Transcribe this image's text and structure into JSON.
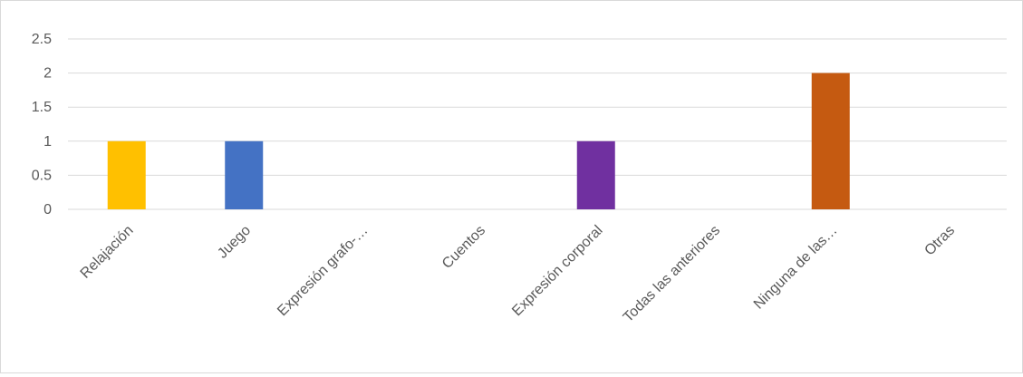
{
  "chart_data": {
    "type": "bar",
    "categories": [
      "Relajación",
      "Juego",
      "Expresión grafo-…",
      "Cuentos",
      "Expresión corporal",
      "Todas las anteriores",
      "Ninguna de las…",
      "Otras"
    ],
    "values": [
      1,
      1,
      0,
      0,
      1,
      0,
      2,
      0
    ],
    "bar_colors": [
      "#FFC000",
      "#4472C4",
      "#A5A5A5",
      "#5B9BD5",
      "#7030A0",
      "#70AD47",
      "#C55A11",
      "#264478"
    ],
    "yticks": [
      "0",
      "0.5",
      "1",
      "1.5",
      "2",
      "2.5"
    ],
    "ylim": [
      0,
      2.5
    ],
    "grid": true,
    "legend": "none",
    "title": "",
    "xlabel": "",
    "ylabel": ""
  }
}
